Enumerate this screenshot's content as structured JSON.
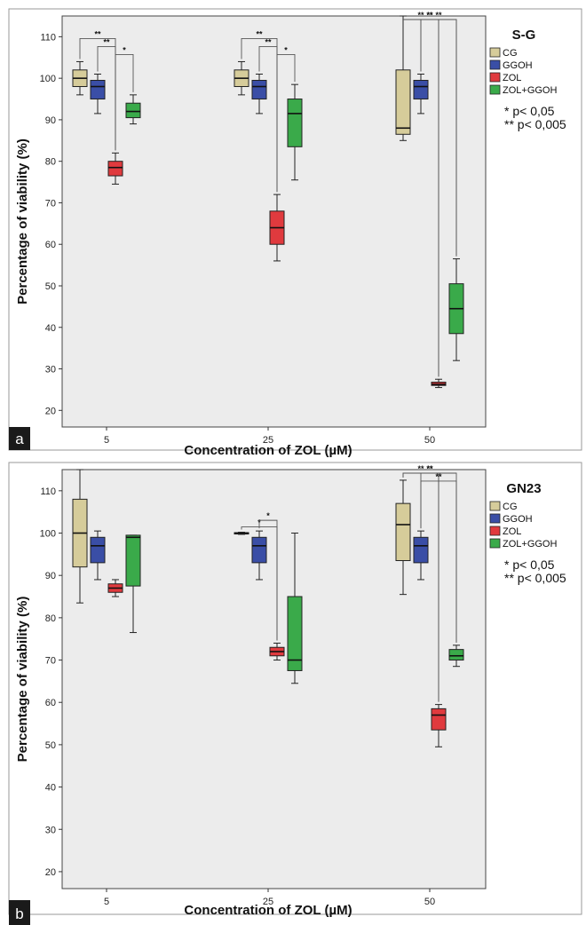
{
  "chart_data": [
    {
      "type": "box",
      "panel": "a",
      "title": "S-G",
      "xlabel": "Concentration of ZOL (µM)",
      "ylabel": "Percentage of viability (%)",
      "ylim": [
        16,
        115
      ],
      "yticks": [
        20,
        30,
        40,
        50,
        60,
        70,
        80,
        90,
        100,
        110
      ],
      "categories": [
        "5",
        "25",
        "50"
      ],
      "legend": {
        "position": "top-right"
      },
      "significance_legend": [
        "* p< 0,05",
        "** p< 0,005"
      ],
      "series": [
        {
          "name": "CG",
          "color": "#d6cc9a",
          "boxes": [
            {
              "min": 96,
              "q1": 98,
              "median": 100,
              "q3": 102,
              "max": 104
            },
            {
              "min": 96,
              "q1": 98,
              "median": 100,
              "q3": 102,
              "max": 104
            },
            {
              "min": 85,
              "q1": 86.5,
              "median": 88,
              "q3": 102,
              "max": 115
            }
          ]
        },
        {
          "name": "GGOH",
          "color": "#3a4ea6",
          "boxes": [
            {
              "min": 91.5,
              "q1": 95,
              "median": 98,
              "q3": 99.5,
              "max": 101
            },
            {
              "min": 91.5,
              "q1": 95,
              "median": 98,
              "q3": 99.5,
              "max": 101
            },
            {
              "min": 91.5,
              "q1": 95,
              "median": 98,
              "q3": 99.5,
              "max": 101
            }
          ]
        },
        {
          "name": "ZOL",
          "color": "#e03a3e",
          "boxes": [
            {
              "min": 74.5,
              "q1": 76.5,
              "median": 78.5,
              "q3": 80,
              "max": 82
            },
            {
              "min": 56,
              "q1": 60,
              "median": 64,
              "q3": 68,
              "max": 72
            },
            {
              "min": 25.5,
              "q1": 26,
              "median": 26.3,
              "q3": 26.8,
              "max": 27.5
            }
          ]
        },
        {
          "name": "ZOL+GGOH",
          "color": "#3aaa4a",
          "boxes": [
            {
              "min": 89,
              "q1": 90.5,
              "median": 92,
              "q3": 94,
              "max": 96
            },
            {
              "min": 75.5,
              "q1": 83.5,
              "median": 91.5,
              "q3": 95,
              "max": 98.5
            },
            {
              "min": 32,
              "q1": 38.5,
              "median": 44.5,
              "q3": 50.5,
              "max": 56.5
            }
          ]
        }
      ],
      "brackets": [
        {
          "category": 0,
          "from": 0,
          "to": 2,
          "label": "**",
          "level": 0
        },
        {
          "category": 0,
          "from": 1,
          "to": 2,
          "label": "**",
          "level": 1
        },
        {
          "category": 0,
          "from": 2,
          "to": 3,
          "label": "*",
          "level": 2
        },
        {
          "category": 1,
          "from": 0,
          "to": 2,
          "label": "**",
          "level": 0
        },
        {
          "category": 1,
          "from": 1,
          "to": 2,
          "label": "**",
          "level": 1
        },
        {
          "category": 1,
          "from": 2,
          "to": 3,
          "label": "*",
          "level": 2
        },
        {
          "category": 2,
          "from": 0,
          "to": 2,
          "label": "**",
          "level": 0
        },
        {
          "category": 2,
          "from": 0,
          "to": 3,
          "label": "**",
          "level": 1
        },
        {
          "category": 2,
          "from": 1,
          "to": 2,
          "label": "**",
          "level": 2
        },
        {
          "category": 2,
          "from": 1,
          "to": 3,
          "label": "**",
          "level": 3
        }
      ]
    },
    {
      "type": "box",
      "panel": "b",
      "title": "GN23",
      "xlabel": "Concentration of ZOL (µM)",
      "ylabel": "Percentage of viability (%)",
      "ylim": [
        16,
        115
      ],
      "yticks": [
        20,
        30,
        40,
        50,
        60,
        70,
        80,
        90,
        100,
        110
      ],
      "categories": [
        "5",
        "25",
        "50"
      ],
      "legend": {
        "position": "top-right"
      },
      "significance_legend": [
        "* p< 0,05",
        "** p< 0,005"
      ],
      "series": [
        {
          "name": "CG",
          "color": "#d6cc9a",
          "boxes": [
            {
              "min": 83.5,
              "q1": 92,
              "median": 100,
              "q3": 108,
              "max": 115
            },
            {
              "min": 99.7,
              "q1": 99.8,
              "median": 100,
              "q3": 100.1,
              "max": 100.2
            },
            {
              "min": 85.5,
              "q1": 93.5,
              "median": 102,
              "q3": 107,
              "max": 112.5
            }
          ]
        },
        {
          "name": "GGOH",
          "color": "#3a4ea6",
          "boxes": [
            {
              "min": 89,
              "q1": 93,
              "median": 97,
              "q3": 99,
              "max": 100.5
            },
            {
              "min": 89,
              "q1": 93,
              "median": 97,
              "q3": 99,
              "max": 100.5
            },
            {
              "min": 89,
              "q1": 93,
              "median": 97,
              "q3": 99,
              "max": 100.5
            }
          ]
        },
        {
          "name": "ZOL",
          "color": "#e03a3e",
          "boxes": [
            {
              "min": 85,
              "q1": 86,
              "median": 87,
              "q3": 88,
              "max": 89
            },
            {
              "min": 70,
              "q1": 71,
              "median": 72,
              "q3": 73,
              "max": 74
            },
            {
              "min": 49.5,
              "q1": 53.5,
              "median": 57,
              "q3": 58.5,
              "max": 59.5
            }
          ]
        },
        {
          "name": "ZOL+GGOH",
          "color": "#3aaa4a",
          "boxes": [
            {
              "min": 76.5,
              "q1": 87.5,
              "median": 99,
              "q3": 99.5,
              "max": 99.5
            },
            {
              "min": 64.5,
              "q1": 67.5,
              "median": 70,
              "q3": 85,
              "max": 100
            },
            {
              "min": 68.5,
              "q1": 70,
              "median": 71,
              "q3": 72.5,
              "max": 73.5
            }
          ]
        }
      ],
      "brackets": [
        {
          "category": 1,
          "from": 0,
          "to": 2,
          "label": "*",
          "level": 0
        },
        {
          "category": 1,
          "from": 1,
          "to": 2,
          "label": "*",
          "level": 1
        },
        {
          "category": 2,
          "from": 0,
          "to": 2,
          "label": "**",
          "level": 0
        },
        {
          "category": 2,
          "from": 0,
          "to": 3,
          "label": "**",
          "level": 1
        },
        {
          "category": 2,
          "from": 1,
          "to": 2,
          "label": "**",
          "level": 2
        },
        {
          "category": 2,
          "from": 1,
          "to": 3,
          "label": "**",
          "level": 3
        }
      ]
    }
  ]
}
